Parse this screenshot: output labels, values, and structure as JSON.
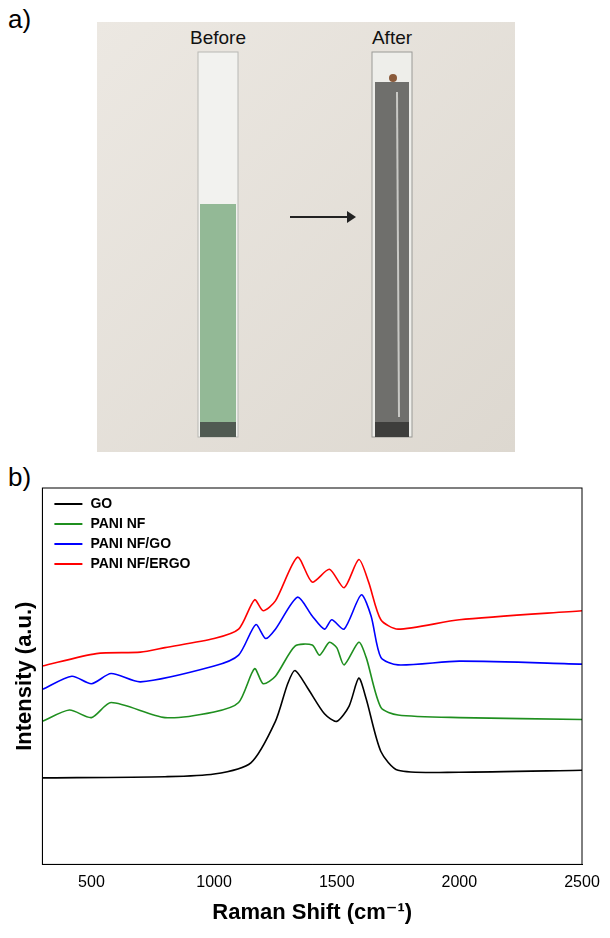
{
  "panel_labels": [
    "a)",
    "b)"
  ],
  "photo": {
    "labels": [
      "Before",
      "After"
    ]
  },
  "chart_data": {
    "type": "line",
    "x_label": "Raman Shift (cm⁻¹)",
    "y_label": "Intensity (a.u.)",
    "xlim": [
      300,
      2500
    ],
    "xticks": [
      500,
      1000,
      1500,
      2000,
      2500
    ],
    "ylim": [
      0,
      100
    ],
    "tick_labels": "x",
    "grid": false,
    "legend": "upper left",
    "series": [
      {
        "name": "GO",
        "color": "#000000",
        "x": [
          300,
          800,
          1000,
          1150,
          1250,
          1300,
          1330,
          1380,
          1450,
          1500,
          1550,
          1590,
          1620,
          1680,
          1750,
          2000,
          2500
        ],
        "values": [
          23,
          23.3,
          24,
          27,
          38,
          48,
          51.5,
          47,
          40,
          38,
          42,
          49.5,
          44,
          30,
          25,
          24.5,
          25
        ]
      },
      {
        "name": "PANI NF",
        "color": "#1f8f1f",
        "x": [
          300,
          410,
          500,
          580,
          800,
          1000,
          1100,
          1165,
          1200,
          1250,
          1330,
          1400,
          1430,
          1470,
          1500,
          1530,
          1590,
          1620,
          1680,
          1750,
          2000,
          2500
        ],
        "values": [
          38,
          41,
          39,
          43,
          39,
          40.5,
          43,
          52,
          48,
          50,
          58,
          58.3,
          55.6,
          59,
          57.6,
          53,
          59,
          55,
          41.7,
          39.7,
          39,
          38.5
        ]
      },
      {
        "name": "PANI NF/GO",
        "color": "#0000ff",
        "x": [
          300,
          420,
          500,
          580,
          700,
          1000,
          1100,
          1170,
          1210,
          1250,
          1340,
          1400,
          1450,
          1480,
          1530,
          1600,
          1640,
          1680,
          1750,
          2000,
          2500
        ],
        "values": [
          46.5,
          50,
          48,
          50.7,
          48.5,
          52.7,
          55.6,
          63.7,
          60,
          62.5,
          71,
          66,
          62.5,
          65,
          62.5,
          71.6,
          66,
          55,
          53,
          54,
          53.2
        ]
      },
      {
        "name": "PANI NF/ERGO",
        "color": "#ff0000",
        "x": [
          300,
          520,
          700,
          800,
          1000,
          1100,
          1165,
          1200,
          1250,
          1340,
          1400,
          1470,
          1530,
          1590,
          1630,
          1680,
          1750,
          2000,
          2500
        ],
        "values": [
          52.7,
          56,
          56.4,
          57.6,
          60,
          62.5,
          70.3,
          67.4,
          70,
          81.6,
          75,
          78.4,
          73.5,
          81,
          75,
          65,
          62.5,
          65,
          67.4
        ]
      }
    ]
  }
}
